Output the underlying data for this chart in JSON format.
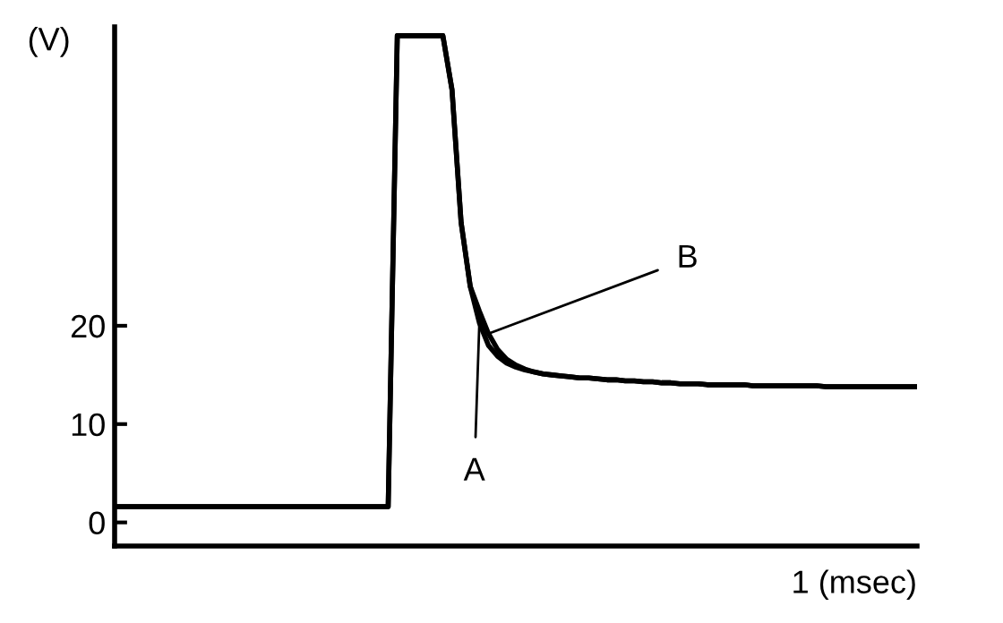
{
  "chart_data": {
    "type": "line",
    "ylabel": "(V)",
    "xlabel": "1 (msec)",
    "categories": [
      null,
      null,
      null,
      null,
      null,
      null,
      null,
      null,
      null,
      null,
      null,
      null,
      null,
      null,
      null,
      null,
      null,
      null,
      null,
      null,
      null,
      null,
      null,
      null,
      null,
      null,
      null,
      null,
      null,
      null,
      null,
      null,
      null,
      null,
      null,
      null,
      null,
      null,
      null,
      null,
      null,
      null,
      null,
      null,
      null,
      null,
      null,
      null,
      null,
      null,
      null,
      null,
      null,
      null,
      null,
      null,
      null,
      null,
      null,
      null,
      null,
      null,
      null,
      null,
      null,
      null,
      null,
      null,
      null,
      null,
      null,
      null,
      null,
      null,
      null,
      null,
      null,
      null,
      null,
      null,
      null,
      null,
      null,
      null,
      null,
      null,
      null,
      null,
      null
    ],
    "ylim": [
      -2.4,
      50.4
    ],
    "yticks": [
      0,
      10,
      20
    ],
    "series": [
      {
        "color": "#000000",
        "values": [
          1.6,
          1.6,
          1.6,
          1.6,
          1.6,
          1.6,
          1.6,
          1.6,
          1.6,
          1.6,
          1.6,
          1.6,
          1.6,
          1.6,
          1.6,
          1.6,
          1.6,
          1.6,
          1.6,
          1.6,
          1.6,
          1.6,
          1.6,
          1.6,
          1.6,
          1.6,
          1.6,
          1.6,
          1.6,
          1.6,
          1.6,
          49.5,
          49.5,
          49.5,
          49.5,
          49.5,
          49.5,
          44,
          30.5,
          24,
          20.3,
          18.0,
          16.9,
          16.2,
          15.8,
          15.5,
          15.3,
          15.1,
          15.0,
          14.9,
          14.8,
          14.7,
          14.7,
          14.6,
          14.5,
          14.5,
          14.4,
          14.4,
          14.3,
          14.3,
          14.2,
          14.2,
          14.1,
          14.1,
          14.1,
          14.0,
          14.0,
          14.0,
          14.0,
          14.0,
          13.9,
          13.9,
          13.9,
          13.9,
          13.9,
          13.9,
          13.9,
          13.9,
          13.8,
          13.8,
          13.8,
          13.8,
          13.8,
          13.8,
          13.8,
          13.8,
          13.8,
          13.8,
          13.8
        ]
      },
      {
        "color": "#000000",
        "values": [
          1.6,
          1.6,
          1.6,
          1.6,
          1.6,
          1.6,
          1.6,
          1.6,
          1.6,
          1.6,
          1.6,
          1.6,
          1.6,
          1.6,
          1.6,
          1.6,
          1.6,
          1.6,
          1.6,
          1.6,
          1.6,
          1.6,
          1.6,
          1.6,
          1.6,
          1.6,
          1.6,
          1.6,
          1.6,
          1.6,
          1.6,
          49.5,
          49.5,
          49.5,
          49.5,
          49.5,
          49.5,
          44,
          30.5,
          24,
          21.5,
          19.2,
          17.6,
          16.6,
          16.0,
          15.6,
          15.3,
          15.1,
          15.0,
          14.9,
          14.8,
          14.7,
          14.7,
          14.6,
          14.5,
          14.5,
          14.4,
          14.4,
          14.3,
          14.3,
          14.2,
          14.2,
          14.1,
          14.1,
          14.1,
          14.0,
          14.0,
          14.0,
          14.0,
          14.0,
          13.9,
          13.9,
          13.9,
          13.9,
          13.9,
          13.9,
          13.9,
          13.9,
          13.8,
          13.8,
          13.8,
          13.8,
          13.8,
          13.8,
          13.8,
          13.8,
          13.8,
          13.8,
          13.8
        ]
      }
    ],
    "annotations": [
      "A",
      "B"
    ],
    "grid": false,
    "marker": "none",
    "line_style": "solid"
  }
}
